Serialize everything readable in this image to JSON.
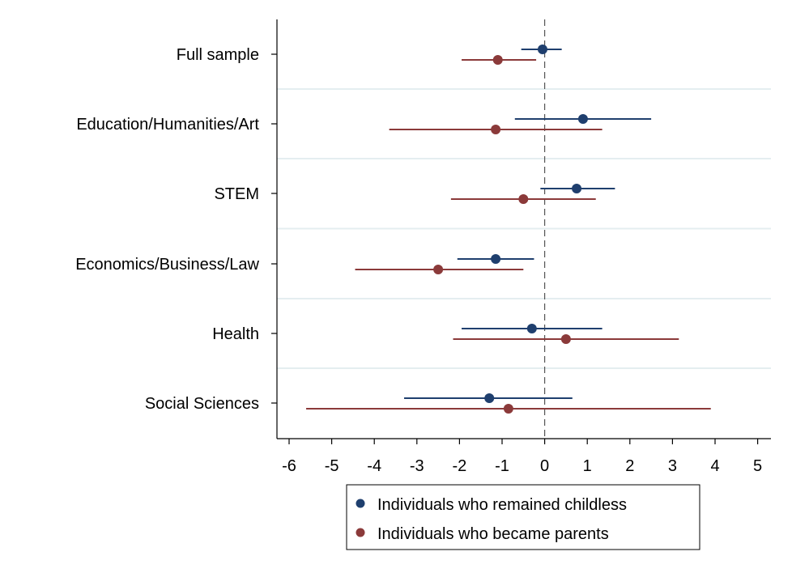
{
  "chart_data": {
    "type": "scatter",
    "subtype": "coefficient-plot",
    "categories": [
      "Full sample",
      "Education/Humanities/Art",
      "STEM",
      "Economics/Business/Law",
      "Health",
      "Social Sciences"
    ],
    "series": [
      {
        "name": "Individuals who remained childless",
        "color": "#1f3f6e",
        "points": [
          {
            "estimate": -0.05,
            "ci_low": -0.55,
            "ci_high": 0.4
          },
          {
            "estimate": 0.9,
            "ci_low": -0.7,
            "ci_high": 2.5
          },
          {
            "estimate": 0.75,
            "ci_low": -0.1,
            "ci_high": 1.65
          },
          {
            "estimate": -1.15,
            "ci_low": -2.05,
            "ci_high": -0.25
          },
          {
            "estimate": -0.3,
            "ci_low": -1.95,
            "ci_high": 1.35
          },
          {
            "estimate": -1.3,
            "ci_low": -3.3,
            "ci_high": 0.65
          }
        ]
      },
      {
        "name": "Individuals who became parents",
        "color": "#8b3a3a",
        "points": [
          {
            "estimate": -1.1,
            "ci_low": -1.95,
            "ci_high": -0.2
          },
          {
            "estimate": -1.15,
            "ci_low": -3.65,
            "ci_high": 1.35
          },
          {
            "estimate": -0.5,
            "ci_low": -2.2,
            "ci_high": 1.2
          },
          {
            "estimate": -2.5,
            "ci_low": -4.45,
            "ci_high": -0.5
          },
          {
            "estimate": 0.5,
            "ci_low": -2.15,
            "ci_high": 3.15
          },
          {
            "estimate": -0.85,
            "ci_low": -5.6,
            "ci_high": 3.9
          }
        ]
      }
    ],
    "xticks": [
      "-6",
      "-5",
      "-4",
      "-3",
      "-2",
      "-1",
      "0",
      "1",
      "2",
      "3",
      "4",
      "5"
    ],
    "xlim": [
      -6.3,
      5.3
    ],
    "reference_line": 0,
    "xlabel": "",
    "ylabel": "",
    "legend_position": "bottom",
    "grid": "horizontal separators between categories"
  }
}
